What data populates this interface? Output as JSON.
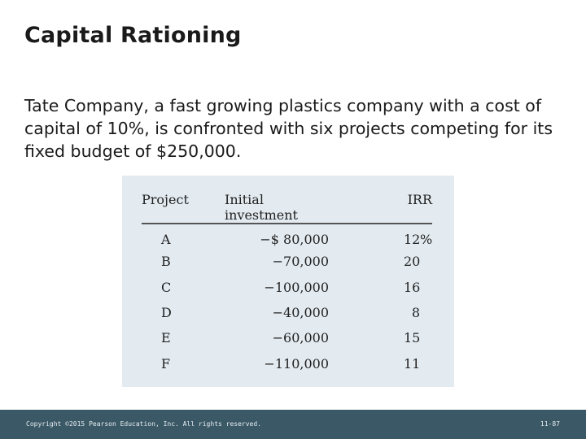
{
  "slide": {
    "title": "Capital Rationing",
    "body": "Tate Company, a fast growing plastics company with a cost of capital of 10%, is confronted with six projects competing for its fixed budget of $250,000."
  },
  "table": {
    "headers": {
      "project": "Project",
      "investment": "Initial investment",
      "irr": "IRR"
    },
    "rows": [
      {
        "project": "A",
        "investment": "−$ 80,000",
        "irr": "12",
        "irr_suffix": "%"
      },
      {
        "project": "B",
        "investment": "−70,000",
        "irr": "20",
        "irr_suffix": ""
      },
      {
        "project": "C",
        "investment": "−100,000",
        "irr": "16",
        "irr_suffix": ""
      },
      {
        "project": "D",
        "investment": "−40,000",
        "irr": "8",
        "irr_suffix": ""
      },
      {
        "project": "E",
        "investment": "−60,000",
        "irr": "15",
        "irr_suffix": ""
      },
      {
        "project": "F",
        "investment": "−110,000",
        "irr": "11",
        "irr_suffix": ""
      }
    ]
  },
  "footer": {
    "copyright": "Copyright ©2015 Pearson Education, Inc. All rights reserved.",
    "page": "11-87"
  },
  "colors": {
    "footer_bg": "#3a5866",
    "table_bg": "#e3ebf1"
  }
}
